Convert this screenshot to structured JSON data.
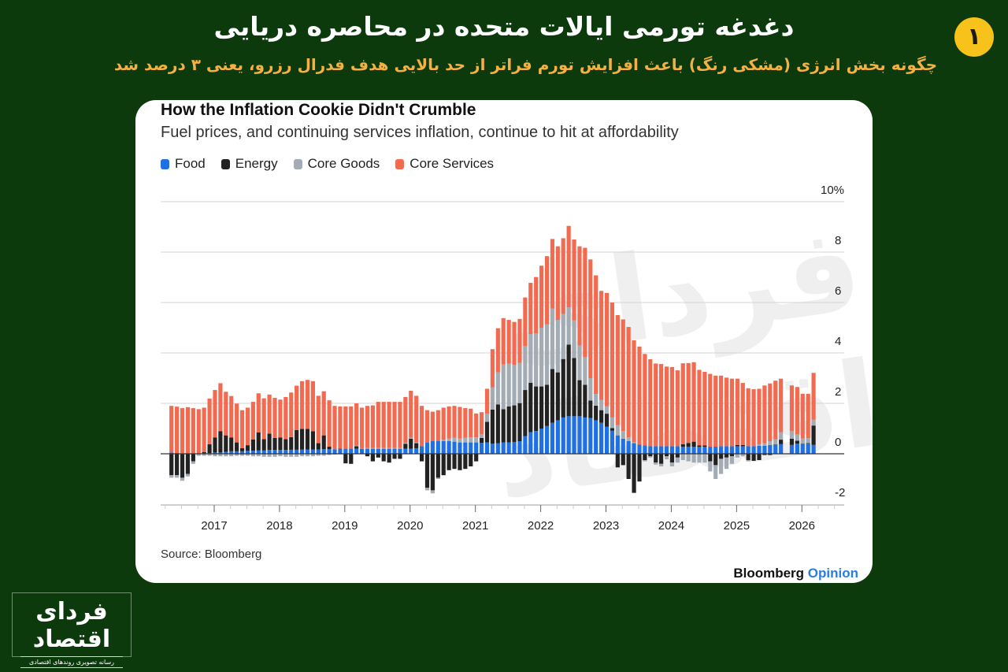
{
  "header": {
    "title": "دغدغه تورمی ایالات متحده در محاصره دریایی",
    "subtitle": "چگونه بخش انرژی (مشکی رنگ) باعث افزایش تورم فراتر از حد بالایی هدف فدرال رزرو، یعنی ۳ درصد شد",
    "badge": "۱"
  },
  "logo": {
    "name": "فردای اقتصاد",
    "tagline": "رسانه تصویری روندهای اقتصادی"
  },
  "watermark": "فردای اقتصاد",
  "colors": {
    "background": "#0c3a0d",
    "title": "#ffffff",
    "subtitle": "#f5b041",
    "badge": "#f7c21a"
  },
  "chart_data": {
    "type": "bar",
    "stacked": true,
    "title": "How the Inflation Cookie Didn't Crumble",
    "subtitle": "Fuel prices, and continuing services inflation, continue to hit at affordability",
    "source": "Source: Bloomberg",
    "brand": {
      "main": "Bloomberg",
      "accent": "Opinion"
    },
    "legend_placement": "top-left",
    "grid": true,
    "ylim": [
      -2,
      10
    ],
    "y_ticks": [
      -2,
      0,
      2,
      4,
      6,
      8,
      10
    ],
    "y_tick_labels": [
      "-2",
      "0",
      "2",
      "4",
      "6",
      "8",
      "10%"
    ],
    "x_tick_labels": [
      "2017",
      "2018",
      "2019",
      "2020",
      "2021",
      "2022",
      "2023",
      "2024",
      "2025",
      "2026"
    ],
    "x": [
      "2016-05",
      "2016-06",
      "2016-07",
      "2016-08",
      "2016-09",
      "2016-10",
      "2016-11",
      "2016-12",
      "2017-01",
      "2017-02",
      "2017-03",
      "2017-04",
      "2017-05",
      "2017-06",
      "2017-07",
      "2017-08",
      "2017-09",
      "2017-10",
      "2017-11",
      "2017-12",
      "2018-01",
      "2018-02",
      "2018-03",
      "2018-04",
      "2018-05",
      "2018-06",
      "2018-07",
      "2018-08",
      "2018-09",
      "2018-10",
      "2018-11",
      "2018-12",
      "2019-01",
      "2019-02",
      "2019-03",
      "2019-04",
      "2019-05",
      "2019-06",
      "2019-07",
      "2019-08",
      "2019-09",
      "2019-10",
      "2019-11",
      "2019-12",
      "2020-01",
      "2020-02",
      "2020-03",
      "2020-04",
      "2020-05",
      "2020-06",
      "2020-07",
      "2020-08",
      "2020-09",
      "2020-10",
      "2020-11",
      "2020-12",
      "2021-01",
      "2021-02",
      "2021-03",
      "2021-04",
      "2021-05",
      "2021-06",
      "2021-07",
      "2021-08",
      "2021-09",
      "2021-10",
      "2021-11",
      "2021-12",
      "2022-01",
      "2022-02",
      "2022-03",
      "2022-04",
      "2022-05",
      "2022-06",
      "2022-07",
      "2022-08",
      "2022-09",
      "2022-10",
      "2022-11",
      "2022-12",
      "2023-01",
      "2023-02",
      "2023-03",
      "2023-04",
      "2023-05",
      "2023-06",
      "2023-07",
      "2023-08",
      "2023-09",
      "2023-10",
      "2023-11",
      "2023-12",
      "2024-01",
      "2024-02",
      "2024-03",
      "2024-04",
      "2024-05",
      "2024-06",
      "2024-07",
      "2024-08",
      "2024-09",
      "2024-10",
      "2024-11",
      "2024-12",
      "2025-01",
      "2025-02",
      "2025-03",
      "2025-04",
      "2025-05",
      "2025-06",
      "2025-07",
      "2025-08",
      "2025-09",
      "2025-10",
      "2025-11",
      "2025-12",
      "2026-01",
      "2026-02",
      "2026-03"
    ],
    "series": [
      {
        "name": "Food",
        "color": "#1f6fe5",
        "values": [
          0.05,
          0.03,
          0.02,
          0,
          0,
          0,
          0.02,
          0.03,
          0.05,
          0.05,
          0.08,
          0.1,
          0.1,
          0.1,
          0.12,
          0.12,
          0.13,
          0.13,
          0.15,
          0.15,
          0.15,
          0.15,
          0.16,
          0.16,
          0.17,
          0.17,
          0.17,
          0.17,
          0.18,
          0.18,
          0.18,
          0.18,
          0.2,
          0.2,
          0.2,
          0.2,
          0.2,
          0.2,
          0.2,
          0.2,
          0.2,
          0.2,
          0.2,
          0.2,
          0.2,
          0.22,
          0.3,
          0.45,
          0.5,
          0.5,
          0.5,
          0.5,
          0.48,
          0.45,
          0.45,
          0.45,
          0.45,
          0.43,
          0.45,
          0.4,
          0.42,
          0.45,
          0.45,
          0.47,
          0.5,
          0.7,
          0.86,
          0.9,
          1.0,
          1.1,
          1.23,
          1.33,
          1.44,
          1.49,
          1.49,
          1.49,
          1.44,
          1.42,
          1.33,
          1.23,
          1.07,
          0.92,
          0.73,
          0.6,
          0.5,
          0.42,
          0.36,
          0.33,
          0.3,
          0.3,
          0.3,
          0.3,
          0.3,
          0.3,
          0.28,
          0.28,
          0.28,
          0.28,
          0.28,
          0.28,
          0.28,
          0.3,
          0.3,
          0.3,
          0.3,
          0.3,
          0.3,
          0.3,
          0.32,
          0.32,
          0.35,
          0.35,
          0.38,
          null,
          0.35,
          0.4,
          0.38,
          0.4,
          0.35
        ]
      },
      {
        "name": "Energy",
        "color": "#222222",
        "values": [
          -0.85,
          -0.85,
          -0.95,
          -0.8,
          -0.3,
          0,
          0.05,
          0.35,
          0.6,
          0.85,
          0.65,
          0.55,
          0.35,
          0.12,
          0.22,
          0.45,
          0.72,
          0.45,
          0.65,
          0.48,
          0.5,
          0.43,
          0.5,
          0.78,
          0.82,
          0.82,
          0.72,
          0.25,
          0.55,
          0.1,
          0,
          0.02,
          -0.38,
          -0.4,
          0.1,
          0,
          -0.1,
          -0.3,
          -0.15,
          -0.3,
          -0.35,
          -0.2,
          -0.2,
          0.2,
          0.4,
          0.2,
          -0.3,
          -1.35,
          -1.45,
          -0.95,
          -0.85,
          -0.65,
          -0.6,
          -0.65,
          -0.6,
          -0.5,
          -0.3,
          0.2,
          0.82,
          1.35,
          1.54,
          1.32,
          1.43,
          1.45,
          1.51,
          1.83,
          1.96,
          1.77,
          1.67,
          1.64,
          2.13,
          1.9,
          2.32,
          2.84,
          2.31,
          1.43,
          1.3,
          0.69,
          0.58,
          0.5,
          0.52,
          0.1,
          -0.54,
          -0.45,
          -1.0,
          -1.55,
          -1.1,
          -0.25,
          -0.1,
          -0.35,
          -0.4,
          -0.1,
          -0.35,
          -0.15,
          0.1,
          0.15,
          0.2,
          0.05,
          0.05,
          -0.3,
          -0.45,
          -0.2,
          -0.15,
          -0.1,
          0.05,
          0.05,
          -0.25,
          -0.28,
          -0.25,
          -0.05,
          -0.05,
          0.02,
          0.18,
          null,
          0.25,
          0.12,
          0.02,
          0.02,
          0.77
        ]
      },
      {
        "name": "Core Goods",
        "color": "#a3abb5",
        "values": [
          -0.1,
          -0.1,
          -0.12,
          -0.1,
          -0.1,
          -0.08,
          -0.08,
          -0.08,
          -0.1,
          -0.1,
          -0.1,
          -0.1,
          -0.08,
          -0.08,
          -0.08,
          -0.1,
          -0.1,
          -0.12,
          -0.12,
          -0.12,
          -0.1,
          -0.12,
          -0.12,
          -0.12,
          -0.1,
          -0.1,
          -0.1,
          -0.08,
          -0.08,
          -0.05,
          -0.03,
          -0.02,
          0,
          0,
          0.02,
          0.02,
          0.03,
          0.03,
          0.03,
          0.03,
          0.03,
          0.03,
          0.03,
          0.03,
          0.03,
          0.03,
          0,
          -0.1,
          -0.12,
          -0.05,
          0.05,
          0.1,
          0.15,
          0.15,
          0.18,
          0.2,
          0.2,
          0.15,
          0.32,
          0.89,
          1.27,
          1.77,
          1.69,
          1.6,
          1.6,
          1.74,
          1.93,
          2.1,
          2.33,
          2.4,
          2.4,
          2.08,
          1.79,
          1.48,
          1.49,
          1.38,
          1.09,
          0.89,
          0.46,
          0.4,
          0.3,
          0.42,
          0.4,
          0.3,
          0.15,
          0.05,
          0,
          -0.05,
          -0.05,
          -0.08,
          -0.1,
          -0.12,
          -0.15,
          -0.2,
          -0.25,
          -0.3,
          -0.35,
          -0.35,
          -0.35,
          -0.4,
          -0.55,
          -0.6,
          -0.45,
          -0.3,
          -0.15,
          -0.1,
          -0.05,
          0,
          0.05,
          0.1,
          0.15,
          0.2,
          0.3,
          null,
          0.3,
          0.25,
          0.2,
          0.2,
          0.23
        ]
      },
      {
        "name": "Core Services",
        "color": "#f26b50",
        "values": [
          1.85,
          1.84,
          1.79,
          1.85,
          1.81,
          1.77,
          1.76,
          1.81,
          1.88,
          1.9,
          1.73,
          1.64,
          1.54,
          1.51,
          1.49,
          1.49,
          1.55,
          1.62,
          1.55,
          1.59,
          1.5,
          1.67,
          1.77,
          1.76,
          1.89,
          1.94,
          1.99,
          1.88,
          1.75,
          1.84,
          1.72,
          1.68,
          1.68,
          1.68,
          1.68,
          1.61,
          1.67,
          1.69,
          1.83,
          1.83,
          1.83,
          1.83,
          1.83,
          1.82,
          1.87,
          1.85,
          1.6,
          1.28,
          1.17,
          1.23,
          1.28,
          1.28,
          1.27,
          1.26,
          1.18,
          1.14,
          0.95,
          0.87,
          0.99,
          1.51,
          1.75,
          1.84,
          1.74,
          1.71,
          1.74,
          1.93,
          2.03,
          2.24,
          2.46,
          2.7,
          2.76,
          2.92,
          3.0,
          3.23,
          3.21,
          3.93,
          4.34,
          4.71,
          4.71,
          4.33,
          4.49,
          4.56,
          4.37,
          4.43,
          4.38,
          4.03,
          3.89,
          3.63,
          3.45,
          3.28,
          3.26,
          3.16,
          3.14,
          3.01,
          3.21,
          3.17,
          3.15,
          3.0,
          2.92,
          2.89,
          2.82,
          2.8,
          2.72,
          2.68,
          2.63,
          2.46,
          2.3,
          2.26,
          2.21,
          2.29,
          2.29,
          2.33,
          2.12,
          null,
          1.81,
          1.88,
          1.78,
          1.76,
          1.86
        ]
      }
    ]
  }
}
